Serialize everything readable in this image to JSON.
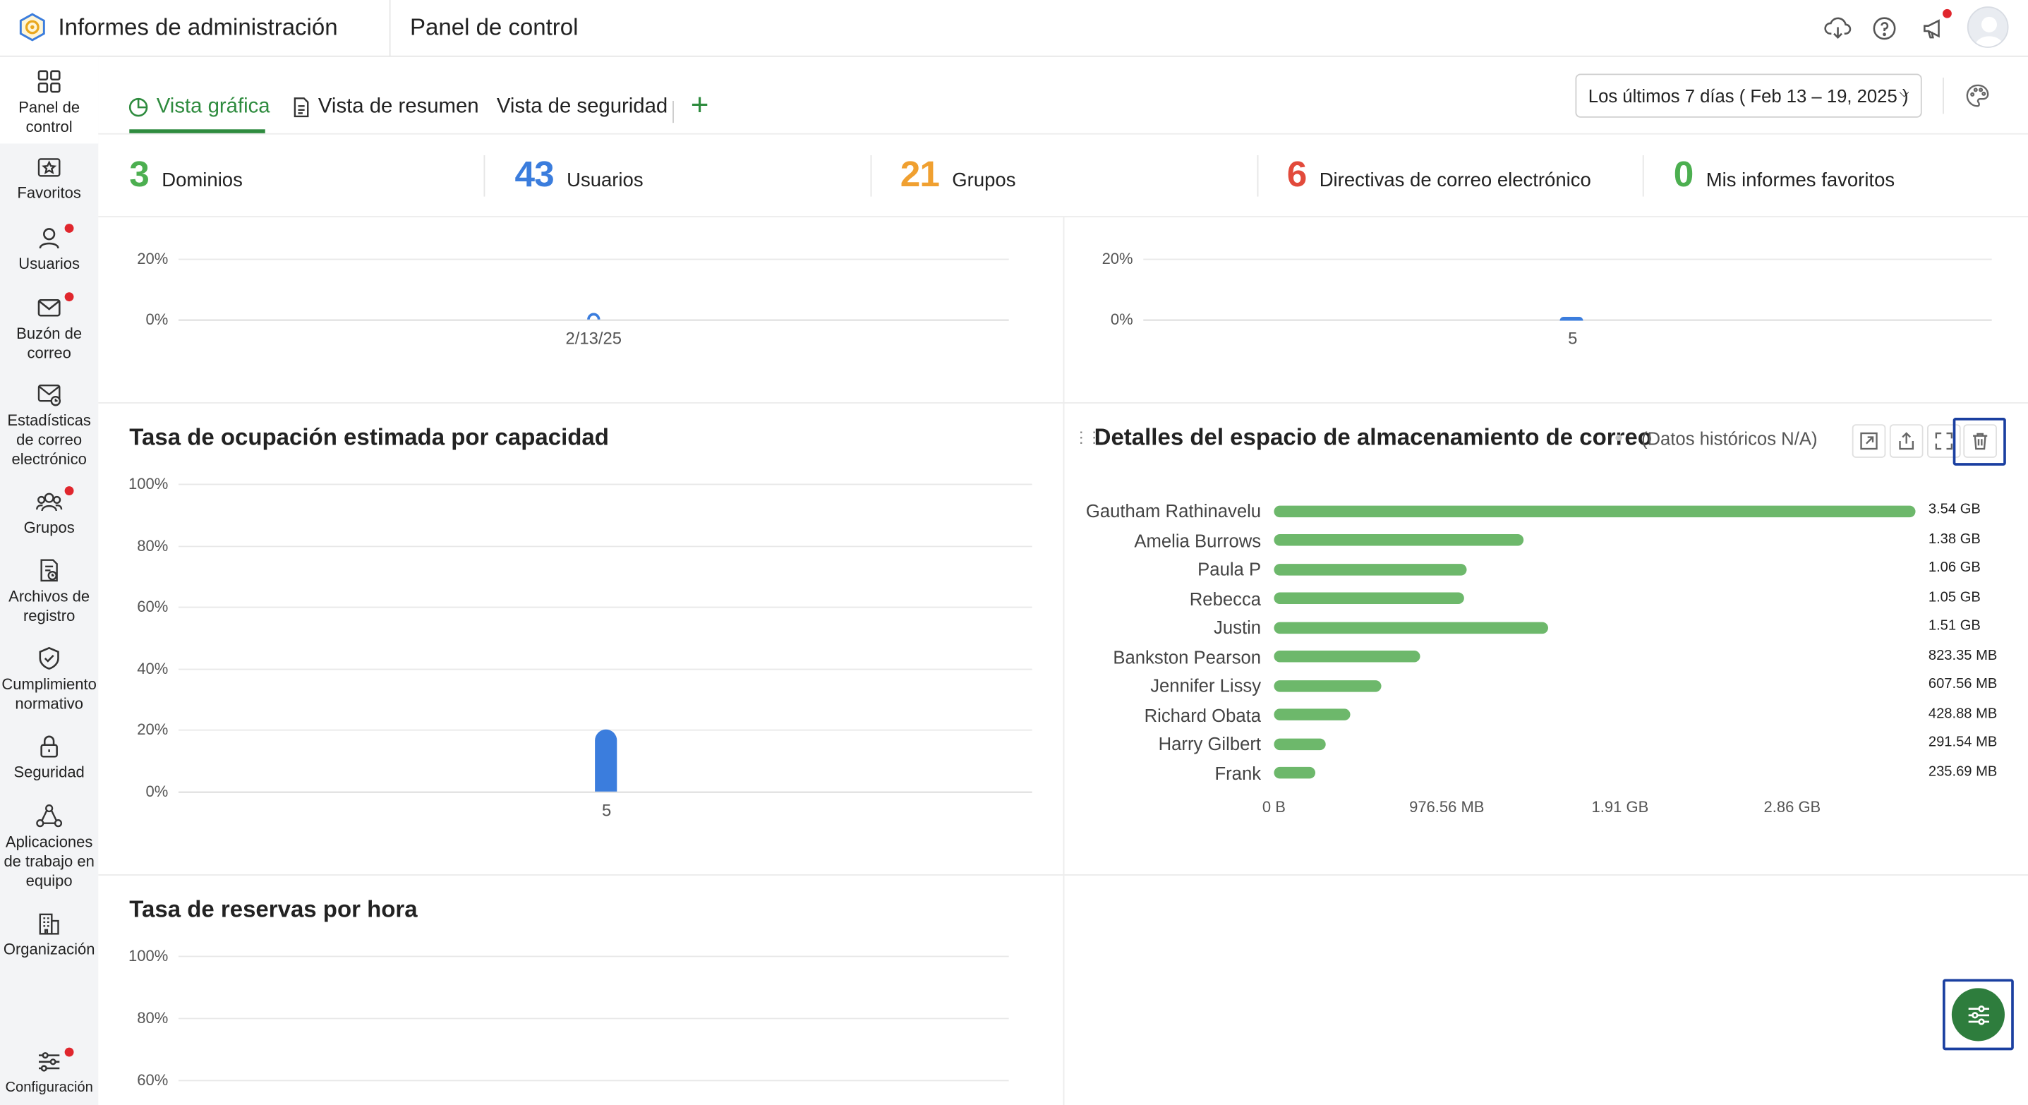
{
  "header": {
    "app_title": "Informes de administración",
    "page_title": "Panel de control",
    "icons": [
      "cloud-download-icon",
      "help-icon",
      "announcement-icon",
      "user-avatar"
    ]
  },
  "sidebar": {
    "items": [
      {
        "label": "Panel de control",
        "icon": "dashboard-grid-icon",
        "active": true
      },
      {
        "label": "Favoritos",
        "icon": "favorites-icon"
      },
      {
        "label": "Usuarios",
        "icon": "user-icon",
        "notify": true
      },
      {
        "label": "Buzón de correo",
        "icon": "mail-icon",
        "notify": true
      },
      {
        "label": "Estadísticas de correo electrónico",
        "icon": "mail-stats-icon"
      },
      {
        "label": "Grupos",
        "icon": "groups-icon",
        "notify": true
      },
      {
        "label": "Archivos de registro",
        "icon": "log-files-icon"
      },
      {
        "label": "Cumplimiento normativo",
        "icon": "shield-check-icon"
      },
      {
        "label": "Seguridad",
        "icon": "lock-icon"
      },
      {
        "label": "Aplicaciones de trabajo en equipo",
        "icon": "team-apps-icon"
      },
      {
        "label": "Organización",
        "icon": "building-icon"
      },
      {
        "label": "Configuración",
        "icon": "settings-sliders-icon",
        "notify": true
      }
    ]
  },
  "tabs": [
    {
      "label": "Vista gráfica",
      "active": true
    },
    {
      "label": "Vista de resumen"
    },
    {
      "label": "Vista de seguridad"
    }
  ],
  "add_tab": "+",
  "date_range": "Los últimos 7 días ( Feb 13 – 19, 2025 )",
  "stats": [
    {
      "value": "3",
      "label": "Dominios",
      "color": "#4caf50"
    },
    {
      "value": "43",
      "label": "Usuarios",
      "color": "#3b7ddd"
    },
    {
      "value": "21",
      "label": "Grupos",
      "color": "#f0a030"
    },
    {
      "value": "6",
      "label": "Directivas de correo electrónico",
      "color": "#e24a3b"
    },
    {
      "value": "0",
      "label": "Mis informes favoritos",
      "color": "#4caf50"
    }
  ],
  "top_left_chart": {
    "yticks": [
      "20%",
      "0%"
    ],
    "xtick": "2/13/25"
  },
  "top_right_chart": {
    "yticks": [
      "20%",
      "0%"
    ],
    "xtick": "5"
  },
  "capacity_panel": {
    "title": "Tasa de ocupación estimada por capacidad",
    "yticks": [
      "100%",
      "80%",
      "60%",
      "40%",
      "20%",
      "0%"
    ],
    "xtick": "5"
  },
  "storage_panel": {
    "title": "Detalles del espacio de almacenamiento de correo",
    "note": "(Datos históricos N/A)",
    "actions": [
      "open-external-icon",
      "share-icon",
      "fullscreen-icon",
      "trash-icon"
    ],
    "x_ticks": [
      "0 B",
      "976.56 MB",
      "1.91 GB",
      "2.86 GB"
    ]
  },
  "reservations_panel": {
    "title": "Tasa de reservas por hora",
    "yticks": [
      "100%",
      "80%",
      "60%"
    ]
  },
  "chart_data": [
    {
      "type": "bar",
      "orientation": "horizontal",
      "title": "Detalles del espacio de almacenamiento de correo",
      "categories": [
        "Gautham Rathinavelu",
        "Amelia Burrows",
        "Paula P",
        "Rebecca",
        "Justin",
        "Bankston Pearson",
        "Jennifer Lissy",
        "Richard Obata",
        "Harry Gilbert",
        "Frank"
      ],
      "values_mb": [
        3624.96,
        1413.12,
        1085.44,
        1075.2,
        1546.24,
        823.35,
        607.56,
        428.88,
        291.54,
        235.69
      ],
      "value_labels": [
        "3.54 GB",
        "1.38 GB",
        "1.06 GB",
        "1.05 GB",
        "1.51 GB",
        "823.35 MB",
        "607.56 MB",
        "428.88 MB",
        "291.54 MB",
        "235.69 MB"
      ],
      "xlim": [
        0,
        3700
      ]
    },
    {
      "type": "bar",
      "title": "Tasa de ocupación estimada por capacidad",
      "categories": [
        "5"
      ],
      "values": [
        20
      ],
      "ylim": [
        0,
        100
      ],
      "yunit": "%"
    }
  ]
}
